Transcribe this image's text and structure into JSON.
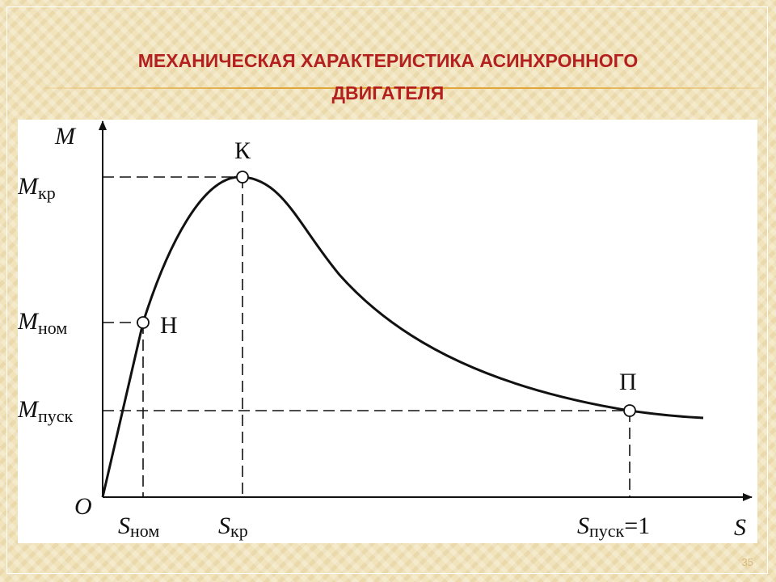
{
  "slide": {
    "title_line1": "МЕХАНИЧЕСКАЯ ХАРАКТЕРИСТИКА АСИНХРОННОГО",
    "title_line2": "ДВИГАТЕЛЯ",
    "number": "35"
  },
  "diagram": {
    "y_axis": "M",
    "x_axis": "S",
    "origin": "O",
    "y_levels": [
      {
        "symbol": "M",
        "sub": "кр"
      },
      {
        "symbol": "M",
        "sub": "ном"
      },
      {
        "symbol": "M",
        "sub": "пуск"
      }
    ],
    "x_levels": [
      {
        "symbol": "S",
        "sub": "ном"
      },
      {
        "symbol": "S",
        "sub": "кр"
      },
      {
        "symbol": "S",
        "sub": "пуск",
        "suffix": "=1"
      }
    ],
    "points": [
      "К",
      "Н",
      "П"
    ]
  }
}
